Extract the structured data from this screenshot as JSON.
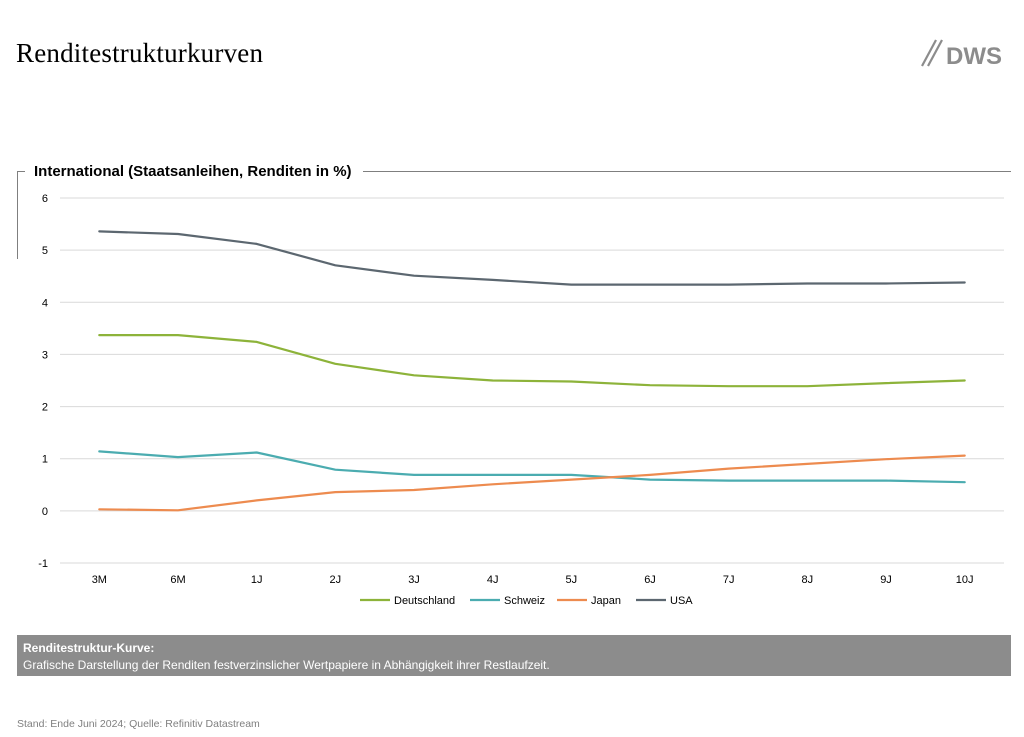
{
  "header": {
    "title": "Renditestrukturkurven",
    "logo_text": "DWS"
  },
  "chart_heading": "International (Staatsanleihen, Renditen in %)",
  "chart_data": {
    "type": "line",
    "title": "International (Staatsanleihen, Renditen in %)",
    "categories": [
      "3M",
      "6M",
      "1J",
      "2J",
      "3J",
      "4J",
      "5J",
      "6J",
      "7J",
      "8J",
      "9J",
      "10J"
    ],
    "ylim": [
      -1,
      6
    ],
    "yticks": [
      -1,
      0,
      1,
      2,
      3,
      4,
      5,
      6
    ],
    "grid": true,
    "legend_position": "bottom",
    "series": [
      {
        "name": "Deutschland",
        "color": "#8DB33A",
        "values": [
          3.37,
          3.37,
          3.24,
          2.82,
          2.6,
          2.5,
          2.48,
          2.41,
          2.39,
          2.39,
          2.45,
          2.5
        ]
      },
      {
        "name": "Schweiz",
        "color": "#4BACB0",
        "values": [
          1.14,
          1.03,
          1.12,
          0.79,
          0.69,
          0.69,
          0.69,
          0.6,
          0.58,
          0.58,
          0.58,
          0.55
        ]
      },
      {
        "name": "Japan",
        "color": "#ED8B4F",
        "values": [
          0.03,
          0.01,
          0.2,
          0.36,
          0.4,
          0.51,
          0.6,
          0.69,
          0.81,
          0.9,
          0.99,
          1.06
        ]
      },
      {
        "name": "USA",
        "color": "#5C6770",
        "values": [
          5.36,
          5.31,
          5.12,
          4.71,
          4.51,
          4.43,
          4.34,
          4.34,
          4.34,
          4.36,
          4.36,
          4.38
        ]
      }
    ]
  },
  "definition": {
    "title": "Renditestruktur-Kurve:",
    "text": "Grafische Darstellung der Renditen festverzinslicher Wertpapiere in Abhängigkeit ihrer Restlaufzeit."
  },
  "footer": {
    "source": "Stand: Ende Juni 2024; Quelle: Refinitiv Datastream"
  },
  "colors": {
    "grid": "#d9d9d9",
    "definition_box": "#8c8c8c",
    "logo": "#8c8c8c"
  }
}
